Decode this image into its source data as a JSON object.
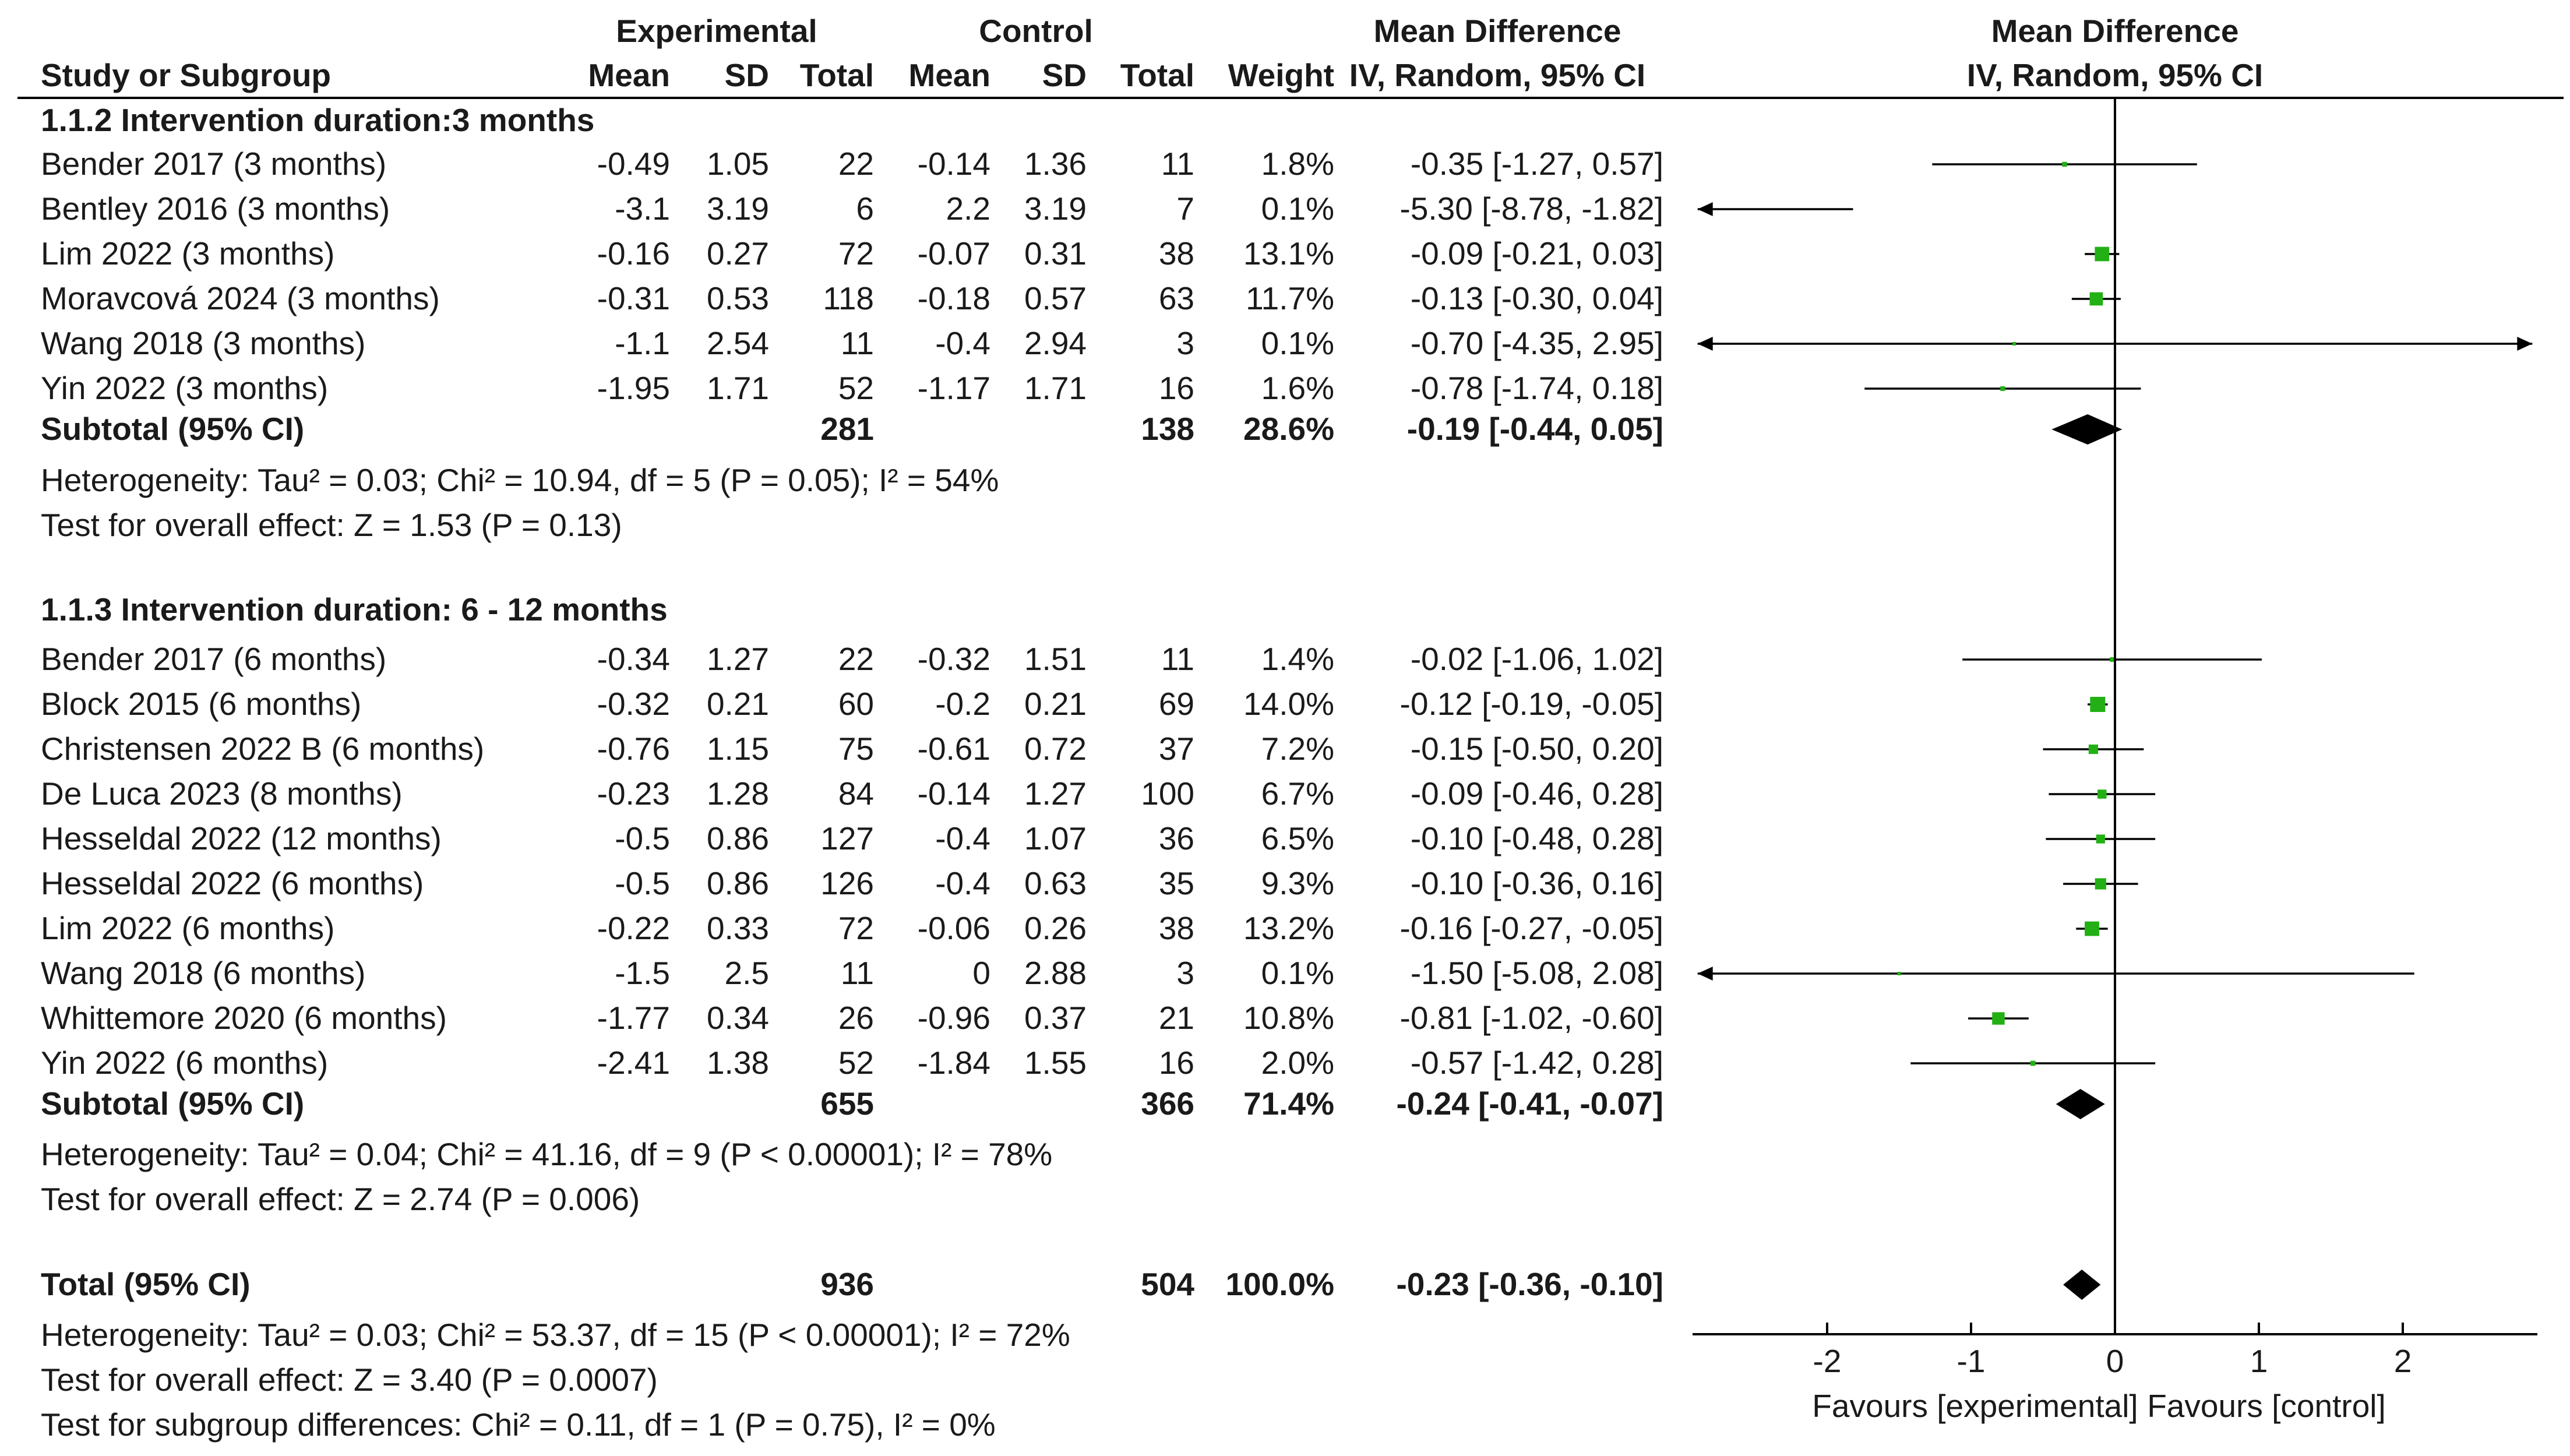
{
  "header": {
    "group_exp": "Experimental",
    "group_ctl": "Control",
    "md_title": "Mean Difference",
    "md_method": "IV, Random, 95% CI",
    "plot_title": "Mean Difference",
    "plot_method": "IV, Random, 95% CI",
    "columns": {
      "study": "Study or Subgroup",
      "mean_e": "Mean",
      "sd_e": "SD",
      "total_e": "Total",
      "mean_c": "Mean",
      "sd_c": "SD",
      "total_c": "Total",
      "weight": "Weight"
    }
  },
  "chart_data": {
    "type": "forest",
    "x_axis": {
      "min": -2.9,
      "max": 2.9,
      "ticks": [
        "-2",
        "-1",
        "0",
        "1",
        "2"
      ],
      "left_label": "Favours [experimental]",
      "right_label": "Favours [control]"
    },
    "subgroups": [
      {
        "title": "1.1.2 Intervention duration:3 months",
        "studies": [
          {
            "study": "Bender 2017 (3 months)",
            "mean_e": "-0.49",
            "sd_e": "1.05",
            "total_e": "22",
            "mean_c": "-0.14",
            "sd_c": "1.36",
            "total_c": "11",
            "weight": "1.8%",
            "ci": "-0.35 [-1.27, 0.57]",
            "md": -0.35,
            "lo": -1.27,
            "hi": 0.57,
            "w": 1.8
          },
          {
            "study": "Bentley 2016 (3 months)",
            "mean_e": "-3.1",
            "sd_e": "3.19",
            "total_e": "6",
            "mean_c": "2.2",
            "sd_c": "3.19",
            "total_c": "7",
            "weight": "0.1%",
            "ci": "-5.30 [-8.78, -1.82]",
            "md": -5.3,
            "lo": -8.78,
            "hi": -1.82,
            "w": 0.1
          },
          {
            "study": "Lim 2022 (3 months)",
            "mean_e": "-0.16",
            "sd_e": "0.27",
            "total_e": "72",
            "mean_c": "-0.07",
            "sd_c": "0.31",
            "total_c": "38",
            "weight": "13.1%",
            "ci": "-0.09 [-0.21, 0.03]",
            "md": -0.09,
            "lo": -0.21,
            "hi": 0.03,
            "w": 13.1
          },
          {
            "study": "Moravcová 2024 (3 months)",
            "mean_e": "-0.31",
            "sd_e": "0.53",
            "total_e": "118",
            "mean_c": "-0.18",
            "sd_c": "0.57",
            "total_c": "63",
            "weight": "11.7%",
            "ci": "-0.13 [-0.30, 0.04]",
            "md": -0.13,
            "lo": -0.3,
            "hi": 0.04,
            "w": 11.7
          },
          {
            "study": "Wang 2018 (3 months)",
            "mean_e": "-1.1",
            "sd_e": "2.54",
            "total_e": "11",
            "mean_c": "-0.4",
            "sd_c": "2.94",
            "total_c": "3",
            "weight": "0.1%",
            "ci": "-0.70 [-4.35, 2.95]",
            "md": -0.7,
            "lo": -4.35,
            "hi": 2.95,
            "w": 0.1
          },
          {
            "study": "Yin 2022 (3 months)",
            "mean_e": "-1.95",
            "sd_e": "1.71",
            "total_e": "52",
            "mean_c": "-1.17",
            "sd_c": "1.71",
            "total_c": "16",
            "weight": "1.6%",
            "ci": "-0.78 [-1.74, 0.18]",
            "md": -0.78,
            "lo": -1.74,
            "hi": 0.18,
            "w": 1.6
          }
        ],
        "subtotal": {
          "label": "Subtotal (95% CI)",
          "total_e": "281",
          "total_c": "138",
          "weight": "28.6%",
          "ci": "-0.19 [-0.44, 0.05]",
          "md": -0.19,
          "lo": -0.44,
          "hi": 0.05
        },
        "heterogeneity": "Heterogeneity: Tau² = 0.03; Chi² = 10.94, df = 5 (P = 0.05); I² = 54%",
        "overall": "Test for overall effect: Z = 1.53 (P = 0.13)"
      },
      {
        "title": "1.1.3 Intervention duration: 6 - 12 months",
        "studies": [
          {
            "study": "Bender 2017 (6 months)",
            "mean_e": "-0.34",
            "sd_e": "1.27",
            "total_e": "22",
            "mean_c": "-0.32",
            "sd_c": "1.51",
            "total_c": "11",
            "weight": "1.4%",
            "ci": "-0.02 [-1.06, 1.02]",
            "md": -0.02,
            "lo": -1.06,
            "hi": 1.02,
            "w": 1.4
          },
          {
            "study": "Block 2015 (6 months)",
            "mean_e": "-0.32",
            "sd_e": "0.21",
            "total_e": "60",
            "mean_c": "-0.2",
            "sd_c": "0.21",
            "total_c": "69",
            "weight": "14.0%",
            "ci": "-0.12 [-0.19, -0.05]",
            "md": -0.12,
            "lo": -0.19,
            "hi": -0.05,
            "w": 14.0
          },
          {
            "study": "Christensen 2022 B (6 months)",
            "mean_e": "-0.76",
            "sd_e": "1.15",
            "total_e": "75",
            "mean_c": "-0.61",
            "sd_c": "0.72",
            "total_c": "37",
            "weight": "7.2%",
            "ci": "-0.15 [-0.50, 0.20]",
            "md": -0.15,
            "lo": -0.5,
            "hi": 0.2,
            "w": 7.2
          },
          {
            "study": "De Luca 2023 (8 months)",
            "mean_e": "-0.23",
            "sd_e": "1.28",
            "total_e": "84",
            "mean_c": "-0.14",
            "sd_c": "1.27",
            "total_c": "100",
            "weight": "6.7%",
            "ci": "-0.09 [-0.46, 0.28]",
            "md": -0.09,
            "lo": -0.46,
            "hi": 0.28,
            "w": 6.7
          },
          {
            "study": "Hesseldal 2022 (12 months)",
            "mean_e": "-0.5",
            "sd_e": "0.86",
            "total_e": "127",
            "mean_c": "-0.4",
            "sd_c": "1.07",
            "total_c": "36",
            "weight": "6.5%",
            "ci": "-0.10 [-0.48, 0.28]",
            "md": -0.1,
            "lo": -0.48,
            "hi": 0.28,
            "w": 6.5
          },
          {
            "study": "Hesseldal 2022 (6 months)",
            "mean_e": "-0.5",
            "sd_e": "0.86",
            "total_e": "126",
            "mean_c": "-0.4",
            "sd_c": "0.63",
            "total_c": "35",
            "weight": "9.3%",
            "ci": "-0.10 [-0.36, 0.16]",
            "md": -0.1,
            "lo": -0.36,
            "hi": 0.16,
            "w": 9.3
          },
          {
            "study": "Lim 2022 (6 months)",
            "mean_e": "-0.22",
            "sd_e": "0.33",
            "total_e": "72",
            "mean_c": "-0.06",
            "sd_c": "0.26",
            "total_c": "38",
            "weight": "13.2%",
            "ci": "-0.16 [-0.27, -0.05]",
            "md": -0.16,
            "lo": -0.27,
            "hi": -0.05,
            "w": 13.2
          },
          {
            "study": "Wang 2018 (6 months)",
            "mean_e": "-1.5",
            "sd_e": "2.5",
            "total_e": "11",
            "mean_c": "0",
            "sd_c": "2.88",
            "total_c": "3",
            "weight": "0.1%",
            "ci": "-1.50 [-5.08, 2.08]",
            "md": -1.5,
            "lo": -5.08,
            "hi": 2.08,
            "w": 0.1
          },
          {
            "study": "Whittemore 2020 (6 months)",
            "mean_e": "-1.77",
            "sd_e": "0.34",
            "total_e": "26",
            "mean_c": "-0.96",
            "sd_c": "0.37",
            "total_c": "21",
            "weight": "10.8%",
            "ci": "-0.81 [-1.02, -0.60]",
            "md": -0.81,
            "lo": -1.02,
            "hi": -0.6,
            "w": 10.8
          },
          {
            "study": "Yin 2022 (6 months)",
            "mean_e": "-2.41",
            "sd_e": "1.38",
            "total_e": "52",
            "mean_c": "-1.84",
            "sd_c": "1.55",
            "total_c": "16",
            "weight": "2.0%",
            "ci": "-0.57 [-1.42, 0.28]",
            "md": -0.57,
            "lo": -1.42,
            "hi": 0.28,
            "w": 2.0
          }
        ],
        "subtotal": {
          "label": "Subtotal (95% CI)",
          "total_e": "655",
          "total_c": "366",
          "weight": "71.4%",
          "ci": "-0.24 [-0.41, -0.07]",
          "md": -0.24,
          "lo": -0.41,
          "hi": -0.07
        },
        "heterogeneity": "Heterogeneity: Tau² = 0.04; Chi² = 41.16, df = 9 (P < 0.00001); I² = 78%",
        "overall": "Test for overall effect: Z = 2.74 (P = 0.006)"
      }
    ],
    "total": {
      "label": "Total (95% CI)",
      "total_e": "936",
      "total_c": "504",
      "weight": "100.0%",
      "ci": "-0.23 [-0.36, -0.10]",
      "md": -0.23,
      "lo": -0.36,
      "hi": -0.1,
      "heterogeneity": "Heterogeneity: Tau² = 0.03; Chi² = 53.37, df = 15 (P < 0.00001); I² = 72%",
      "overall": "Test for overall effect: Z = 3.40 (P = 0.0007)",
      "subgroup_diff": "Test for subgroup differences: Chi² = 0.11, df = 1 (P = 0.75), I² = 0%"
    },
    "colors": {
      "square": "#22b014",
      "line": "#000000",
      "diamond": "#000000"
    }
  }
}
